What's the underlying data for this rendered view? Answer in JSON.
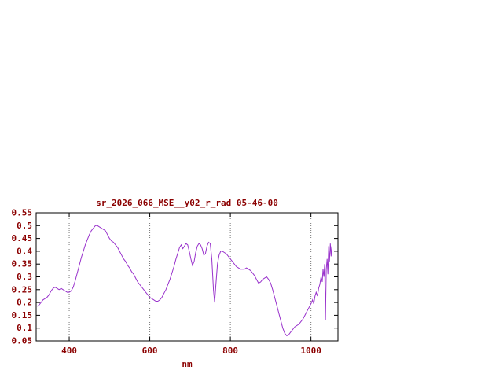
{
  "window": {
    "background": "#ffffff"
  },
  "chart_data": {
    "type": "line",
    "title": "sr_2026_066_MSE__y02_r_rad 05-46-00",
    "xlabel": "nm",
    "ylabel": "",
    "xlim": [
      318,
      1067
    ],
    "ylim": [
      0.05,
      0.55
    ],
    "xticks": [
      400,
      600,
      800,
      1000
    ],
    "xtick_labels": [
      "400",
      "600",
      "800",
      "1000"
    ],
    "yticks": [
      0.05,
      0.1,
      0.15,
      0.2,
      0.25,
      0.3,
      0.35,
      0.4,
      0.45,
      0.5,
      0.55
    ],
    "ytick_labels": [
      "0.05",
      "0.1",
      "0.15",
      "0.2",
      "0.25",
      "0.3",
      "0.35",
      "0.4",
      "0.45",
      "0.5",
      "0.55"
    ],
    "grid": "vertical dotted lines at xticks",
    "legend": "none",
    "colors": {
      "text": "#8b0000",
      "line": "#9932cc",
      "border": "#000000",
      "grid": "#777777",
      "background": "#ffffff"
    },
    "series": [
      {
        "name": "radiance spectrum",
        "points": [
          [
            320,
            0.185
          ],
          [
            325,
            0.19
          ],
          [
            330,
            0.2
          ],
          [
            335,
            0.21
          ],
          [
            340,
            0.215
          ],
          [
            345,
            0.22
          ],
          [
            350,
            0.23
          ],
          [
            355,
            0.245
          ],
          [
            360,
            0.255
          ],
          [
            365,
            0.26
          ],
          [
            370,
            0.255
          ],
          [
            375,
            0.25
          ],
          [
            380,
            0.255
          ],
          [
            385,
            0.25
          ],
          [
            390,
            0.245
          ],
          [
            395,
            0.24
          ],
          [
            400,
            0.24
          ],
          [
            405,
            0.245
          ],
          [
            410,
            0.26
          ],
          [
            415,
            0.285
          ],
          [
            420,
            0.315
          ],
          [
            425,
            0.345
          ],
          [
            430,
            0.375
          ],
          [
            435,
            0.4
          ],
          [
            440,
            0.425
          ],
          [
            445,
            0.445
          ],
          [
            450,
            0.465
          ],
          [
            455,
            0.48
          ],
          [
            460,
            0.49
          ],
          [
            465,
            0.5
          ],
          [
            470,
            0.5
          ],
          [
            475,
            0.495
          ],
          [
            480,
            0.49
          ],
          [
            485,
            0.485
          ],
          [
            490,
            0.48
          ],
          [
            495,
            0.465
          ],
          [
            500,
            0.45
          ],
          [
            505,
            0.44
          ],
          [
            510,
            0.435
          ],
          [
            515,
            0.425
          ],
          [
            520,
            0.415
          ],
          [
            525,
            0.4
          ],
          [
            530,
            0.385
          ],
          [
            535,
            0.37
          ],
          [
            540,
            0.36
          ],
          [
            545,
            0.345
          ],
          [
            550,
            0.335
          ],
          [
            555,
            0.32
          ],
          [
            560,
            0.31
          ],
          [
            565,
            0.295
          ],
          [
            570,
            0.28
          ],
          [
            575,
            0.27
          ],
          [
            580,
            0.26
          ],
          [
            585,
            0.25
          ],
          [
            590,
            0.24
          ],
          [
            595,
            0.23
          ],
          [
            600,
            0.22
          ],
          [
            605,
            0.215
          ],
          [
            610,
            0.21
          ],
          [
            615,
            0.205
          ],
          [
            620,
            0.205
          ],
          [
            625,
            0.21
          ],
          [
            630,
            0.22
          ],
          [
            635,
            0.235
          ],
          [
            640,
            0.25
          ],
          [
            645,
            0.27
          ],
          [
            650,
            0.29
          ],
          [
            655,
            0.315
          ],
          [
            660,
            0.34
          ],
          [
            665,
            0.37
          ],
          [
            670,
            0.395
          ],
          [
            674,
            0.415
          ],
          [
            678,
            0.425
          ],
          [
            682,
            0.41
          ],
          [
            686,
            0.42
          ],
          [
            690,
            0.43
          ],
          [
            694,
            0.425
          ],
          [
            698,
            0.4
          ],
          [
            702,
            0.37
          ],
          [
            706,
            0.345
          ],
          [
            710,
            0.36
          ],
          [
            714,
            0.395
          ],
          [
            718,
            0.42
          ],
          [
            722,
            0.43
          ],
          [
            726,
            0.425
          ],
          [
            730,
            0.41
          ],
          [
            734,
            0.385
          ],
          [
            738,
            0.39
          ],
          [
            742,
            0.42
          ],
          [
            746,
            0.435
          ],
          [
            750,
            0.43
          ],
          [
            754,
            0.37
          ],
          [
            758,
            0.25
          ],
          [
            761,
            0.2
          ],
          [
            764,
            0.27
          ],
          [
            768,
            0.35
          ],
          [
            772,
            0.385
          ],
          [
            776,
            0.4
          ],
          [
            780,
            0.4
          ],
          [
            785,
            0.395
          ],
          [
            790,
            0.39
          ],
          [
            795,
            0.38
          ],
          [
            800,
            0.37
          ],
          [
            805,
            0.36
          ],
          [
            810,
            0.35
          ],
          [
            815,
            0.34
          ],
          [
            820,
            0.335
          ],
          [
            825,
            0.33
          ],
          [
            830,
            0.33
          ],
          [
            835,
            0.33
          ],
          [
            840,
            0.335
          ],
          [
            845,
            0.33
          ],
          [
            850,
            0.325
          ],
          [
            855,
            0.315
          ],
          [
            860,
            0.305
          ],
          [
            865,
            0.29
          ],
          [
            870,
            0.275
          ],
          [
            875,
            0.28
          ],
          [
            880,
            0.29
          ],
          [
            885,
            0.295
          ],
          [
            890,
            0.3
          ],
          [
            895,
            0.29
          ],
          [
            900,
            0.275
          ],
          [
            905,
            0.25
          ],
          [
            910,
            0.22
          ],
          [
            915,
            0.19
          ],
          [
            920,
            0.16
          ],
          [
            925,
            0.13
          ],
          [
            930,
            0.1
          ],
          [
            935,
            0.08
          ],
          [
            940,
            0.07
          ],
          [
            945,
            0.075
          ],
          [
            950,
            0.085
          ],
          [
            955,
            0.095
          ],
          [
            960,
            0.105
          ],
          [
            965,
            0.11
          ],
          [
            970,
            0.115
          ],
          [
            975,
            0.125
          ],
          [
            980,
            0.135
          ],
          [
            985,
            0.15
          ],
          [
            990,
            0.165
          ],
          [
            995,
            0.18
          ],
          [
            1000,
            0.195
          ],
          [
            1004,
            0.21
          ],
          [
            1007,
            0.195
          ],
          [
            1010,
            0.225
          ],
          [
            1013,
            0.24
          ],
          [
            1016,
            0.225
          ],
          [
            1019,
            0.255
          ],
          [
            1022,
            0.27
          ],
          [
            1025,
            0.3
          ],
          [
            1028,
            0.28
          ],
          [
            1030,
            0.33
          ],
          [
            1032,
            0.3
          ],
          [
            1034,
            0.35
          ],
          [
            1036,
            0.13
          ],
          [
            1038,
            0.33
          ],
          [
            1040,
            0.37
          ],
          [
            1042,
            0.31
          ],
          [
            1044,
            0.42
          ],
          [
            1046,
            0.36
          ],
          [
            1048,
            0.43
          ],
          [
            1050,
            0.38
          ],
          [
            1052,
            0.42
          ]
        ]
      }
    ]
  }
}
